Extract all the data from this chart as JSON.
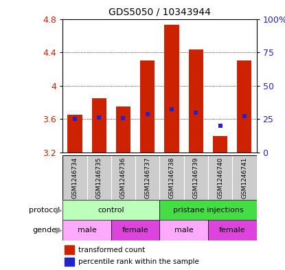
{
  "title": "GDS5050 / 10343944",
  "samples": [
    "GSM1246734",
    "GSM1246735",
    "GSM1246736",
    "GSM1246737",
    "GSM1246738",
    "GSM1246739",
    "GSM1246740",
    "GSM1246741"
  ],
  "bar_values": [
    3.65,
    3.85,
    3.75,
    4.3,
    4.73,
    4.43,
    3.4,
    4.3
  ],
  "blue_dot_values": [
    3.6,
    3.62,
    3.61,
    3.66,
    3.72,
    3.68,
    3.52,
    3.64
  ],
  "baseline": 3.2,
  "ylim": [
    3.2,
    4.8
  ],
  "yticks": [
    3.2,
    3.6,
    4.0,
    4.4,
    4.8
  ],
  "ytick_labels": [
    "3.2",
    "3.6",
    "4",
    "4.4",
    "4.8"
  ],
  "right_yticks_pct": [
    0,
    25,
    50,
    75,
    100
  ],
  "right_ylabels": [
    "0",
    "25",
    "50",
    "75",
    "100%"
  ],
  "bar_color": "#cc2200",
  "dot_color": "#2222cc",
  "bar_width": 0.6,
  "protocol_groups": [
    {
      "label": "control",
      "start": 0,
      "end": 3,
      "color": "#bbffbb"
    },
    {
      "label": "pristane injections",
      "start": 4,
      "end": 7,
      "color": "#44dd44"
    }
  ],
  "gender_groups": [
    {
      "label": "male",
      "start": 0,
      "end": 1,
      "color": "#ffaaff"
    },
    {
      "label": "female",
      "start": 2,
      "end": 3,
      "color": "#dd44dd"
    },
    {
      "label": "male",
      "start": 4,
      "end": 5,
      "color": "#ffaaff"
    },
    {
      "label": "female",
      "start": 6,
      "end": 7,
      "color": "#dd44dd"
    }
  ],
  "ylabel_left_color": "#cc2200",
  "ylabel_right_color": "#2222cc",
  "sample_bg_color": "#cccccc",
  "arrow_color": "#999999",
  "legend_red_label": "transformed count",
  "legend_blue_label": "percentile rank within the sample"
}
